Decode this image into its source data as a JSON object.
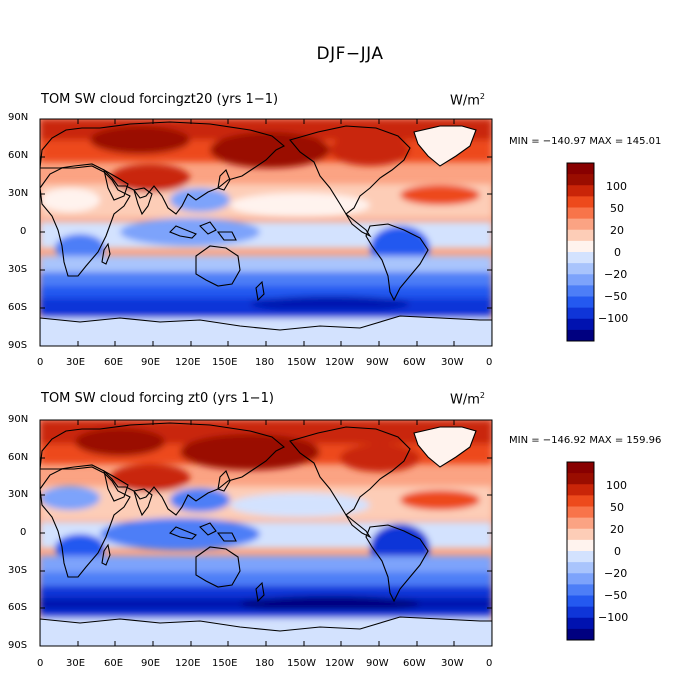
{
  "figure_title": "DJF−JJA",
  "colors": {
    "levels": [
      "#000080",
      "#0012b0",
      "#0f35d8",
      "#2459f0",
      "#4d7ef7",
      "#7da3fb",
      "#a9c4fc",
      "#d3e2fe",
      "#fff3ee",
      "#fdcdb7",
      "#fba383",
      "#f8744a",
      "#ed4a1c",
      "#c92508",
      "#9a0d00",
      "#880000"
    ],
    "land_outline": "#000000",
    "antarctica": "#d3e2fe",
    "greenland": "#fff3ee"
  },
  "panels": [
    {
      "title": "TOM SW cloud forcingzt20 (yrs 1−1)",
      "units_base": "W/m",
      "units_exp": "2",
      "minmax": "MIN = −140.97 MAX = 145.01",
      "lat_labels": [
        "90N",
        "60N",
        "30N",
        "0",
        "30S",
        "60S",
        "90S"
      ],
      "lon_labels": [
        "0",
        "30E",
        "60E",
        "90E",
        "120E",
        "150E",
        "180",
        "150W",
        "120W",
        "90W",
        "60W",
        "30W",
        "0"
      ],
      "colorbar_labels": [
        "100",
        "50",
        "20",
        "0",
        "−20",
        "−50",
        "−100"
      ],
      "stats": {
        "min": -140.97,
        "max": 145.01
      }
    },
    {
      "title": "TOM SW cloud forcing zt0 (yrs 1−1)",
      "units_base": "W/m",
      "units_exp": "2",
      "minmax": "MIN = −146.92 MAX = 159.96",
      "lat_labels": [
        "90N",
        "60N",
        "30N",
        "0",
        "30S",
        "60S",
        "90S"
      ],
      "lon_labels": [
        "0",
        "30E",
        "60E",
        "90E",
        "120E",
        "150E",
        "180",
        "150W",
        "120W",
        "90W",
        "60W",
        "30W",
        "0"
      ],
      "colorbar_labels": [
        "100",
        "50",
        "20",
        "0",
        "−20",
        "−50",
        "−100"
      ],
      "stats": {
        "min": -146.92,
        "max": 159.96
      }
    }
  ]
}
